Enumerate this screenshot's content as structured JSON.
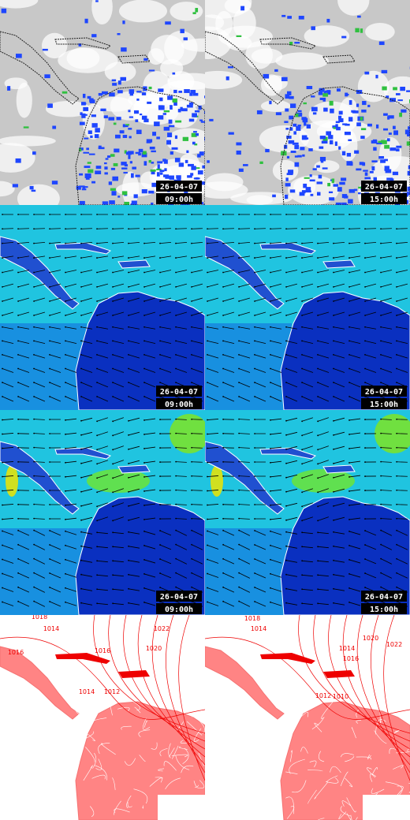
{
  "panels": [
    {
      "date": "26-04-07",
      "time": "09:00h"
    },
    {
      "date": "26-04-07",
      "time": "15:00h"
    },
    {
      "date": "26-04-07",
      "time": "09:00h"
    },
    {
      "date": "26-04-07",
      "time": "15:00h"
    },
    {
      "date": "26-04-07",
      "time": "09:00h"
    },
    {
      "date": "26-04-07",
      "time": "15:00h"
    }
  ],
  "pressure_panels": [
    {
      "isobar_labels": [
        "1018",
        "1014",
        "1016",
        "1016",
        "1022",
        "1020",
        "1012",
        "1014"
      ]
    },
    {
      "isobar_labels": [
        "1018",
        "1014",
        "1020",
        "1022",
        "1016",
        "1014",
        "1012",
        "1010"
      ]
    }
  ]
}
